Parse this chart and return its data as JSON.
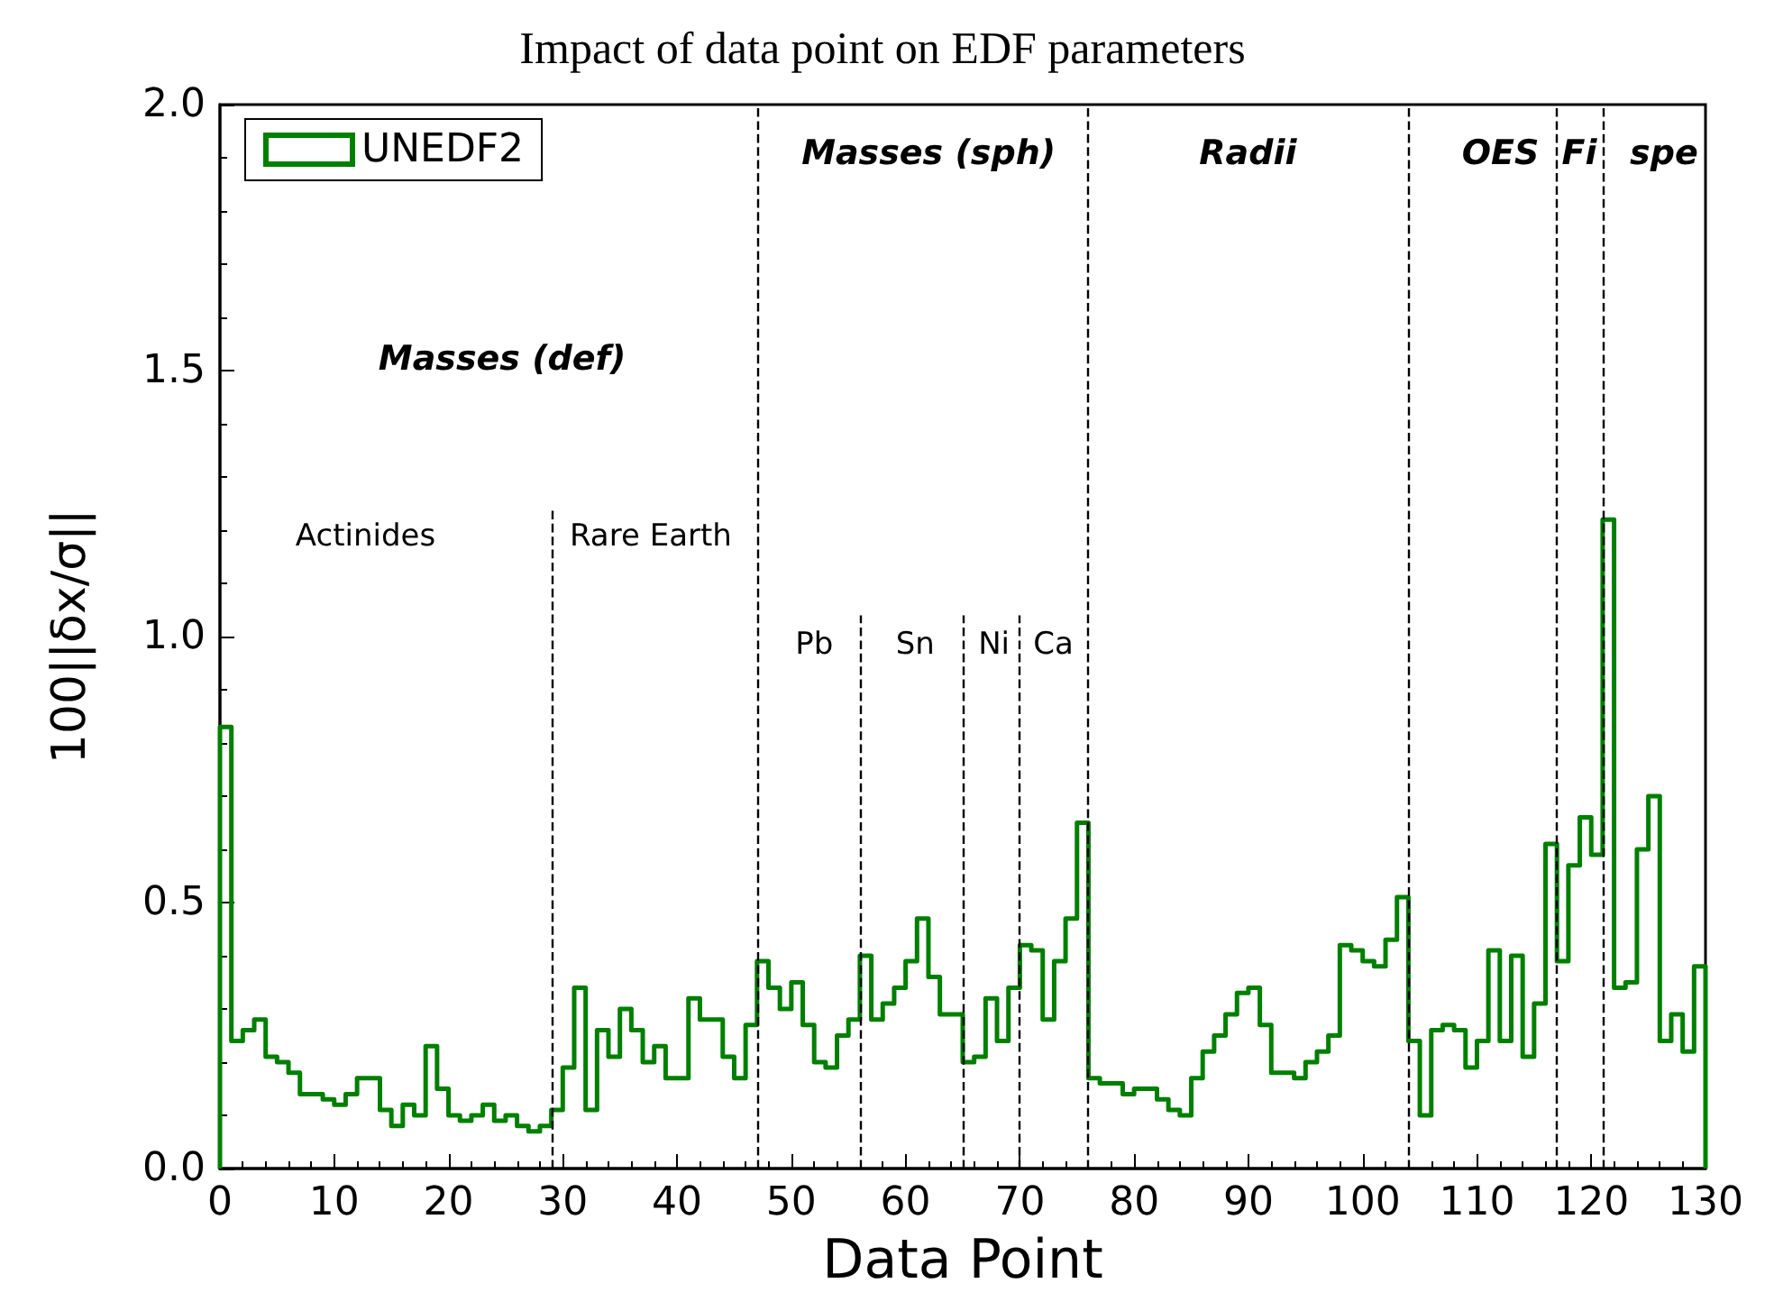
{
  "chart_data": {
    "type": "histogram",
    "title": "Impact of data point on EDF parameters",
    "xlabel": "Data Point",
    "ylabel": "100||δx/σ||",
    "bins": [
      0,
      1,
      2,
      3,
      4,
      5,
      6,
      7,
      8,
      9,
      10,
      11,
      12,
      13,
      14,
      15,
      16,
      17,
      18,
      19,
      20,
      21,
      22,
      23,
      24,
      25,
      26,
      27,
      28,
      29,
      30,
      31,
      32,
      33,
      34,
      35,
      36,
      37,
      38,
      39,
      40,
      41,
      42,
      43,
      44,
      45,
      46,
      47,
      48,
      49,
      50,
      51,
      52,
      53,
      54,
      55,
      56,
      57,
      58,
      59,
      60,
      61,
      62,
      63,
      64,
      65,
      66,
      67,
      68,
      69,
      70,
      71,
      72,
      73,
      74,
      75,
      76,
      77,
      78,
      79,
      80,
      81,
      82,
      83,
      84,
      85,
      86,
      87,
      88,
      89,
      90,
      91,
      92,
      93,
      94,
      95,
      96,
      97,
      98,
      99,
      100,
      101,
      102,
      103,
      104,
      105,
      106,
      107,
      108,
      109,
      110,
      111,
      112,
      113,
      114,
      115,
      116,
      117,
      118,
      119,
      120,
      121,
      122,
      123,
      124,
      125,
      126,
      127,
      128,
      129,
      130
    ],
    "series": [
      {
        "name": "UNEDF2",
        "color": "#008000",
        "values": [
          0.83,
          0.24,
          0.26,
          0.28,
          0.21,
          0.2,
          0.18,
          0.14,
          0.14,
          0.13,
          0.12,
          0.14,
          0.17,
          0.17,
          0.11,
          0.08,
          0.12,
          0.1,
          0.23,
          0.15,
          0.1,
          0.09,
          0.1,
          0.12,
          0.09,
          0.1,
          0.08,
          0.07,
          0.08,
          0.11,
          0.19,
          0.34,
          0.11,
          0.26,
          0.21,
          0.3,
          0.26,
          0.2,
          0.23,
          0.17,
          0.17,
          0.32,
          0.28,
          0.28,
          0.21,
          0.17,
          0.27,
          0.39,
          0.34,
          0.3,
          0.35,
          0.27,
          0.2,
          0.19,
          0.25,
          0.28,
          0.4,
          0.28,
          0.31,
          0.34,
          0.39,
          0.47,
          0.36,
          0.29,
          0.29,
          0.2,
          0.21,
          0.32,
          0.24,
          0.34,
          0.42,
          0.41,
          0.28,
          0.39,
          0.47,
          0.65,
          0.17,
          0.16,
          0.16,
          0.14,
          0.15,
          0.15,
          0.13,
          0.11,
          0.1,
          0.17,
          0.22,
          0.25,
          0.29,
          0.33,
          0.34,
          0.27,
          0.18,
          0.18,
          0.17,
          0.2,
          0.22,
          0.25,
          0.42,
          0.41,
          0.39,
          0.38,
          0.43,
          0.51,
          0.24,
          0.1,
          0.26,
          0.27,
          0.26,
          0.19,
          0.24,
          0.41,
          0.24,
          0.4,
          0.21,
          0.31,
          0.61,
          0.39,
          0.57,
          0.66,
          0.59,
          1.22,
          0.34,
          0.35,
          0.6,
          0.7,
          0.24,
          0.29,
          0.22,
          0.38
        ]
      }
    ],
    "xlim": [
      0,
      130
    ],
    "xticks": [
      0,
      10,
      20,
      30,
      40,
      50,
      60,
      70,
      80,
      90,
      100,
      110,
      120,
      130
    ],
    "ylim": [
      0,
      2
    ],
    "yticks": [
      {
        "value": 0,
        "label": "0.0"
      },
      {
        "value": 0.5,
        "label": "0.5"
      },
      {
        "value": 1,
        "label": "1.0"
      },
      {
        "value": 1.5,
        "label": "1.5"
      },
      {
        "value": 2,
        "label": "2.0"
      }
    ],
    "ref_lines": [
      {
        "axis": "x",
        "value": 29,
        "line_style": "dashed",
        "color": "#000000"
      },
      {
        "axis": "x",
        "value": 47,
        "line_style": "dashed",
        "color": "#000000"
      },
      {
        "axis": "x",
        "value": 56,
        "line_style": "dashed",
        "color": "#000000"
      },
      {
        "axis": "x",
        "value": 65,
        "line_style": "dashed",
        "color": "#000000"
      },
      {
        "axis": "x",
        "value": 70,
        "line_style": "dashed",
        "color": "#000000"
      },
      {
        "axis": "x",
        "value": 76,
        "line_style": "dashed",
        "color": "#000000"
      },
      {
        "axis": "x",
        "value": 104,
        "line_style": "dashed",
        "color": "#000000"
      },
      {
        "axis": "x",
        "value": 117,
        "line_style": "dashed",
        "color": "#000000"
      },
      {
        "axis": "x",
        "value": 121,
        "line_style": "dashed",
        "color": "#000000"
      }
    ],
    "annotations": [
      "Masses (def)",
      "Masses (sph)",
      "Radii",
      "OES",
      "Fi",
      "spe",
      "Actinides",
      "Rare Earth",
      "Pb",
      "Sn",
      "Ni",
      "Ca"
    ],
    "legend": "top left",
    "grid": false
  }
}
